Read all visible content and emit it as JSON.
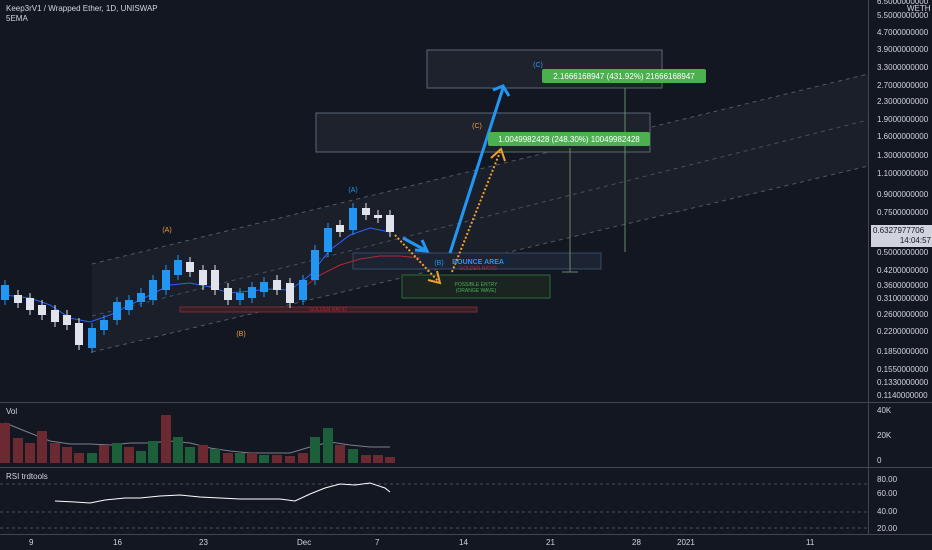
{
  "header": {
    "symbol_line": "Keep3rV1 / Wrapped Ether, 1D, UNISWAP",
    "indicator": "5EMA"
  },
  "price_axis": {
    "unit": "WETH",
    "ticks": [
      "6.5000000000",
      "5.5000000000",
      "4.7000000000",
      "3.9000000000",
      "3.3000000000",
      "2.7000000000",
      "2.3000000000",
      "1.9000000000",
      "1.6000000000",
      "1.3000000000",
      "1.1000000000",
      "0.9000000000",
      "0.7500000000",
      "0.6100000000",
      "0.5000000000",
      "0.4200000000",
      "0.3600000000",
      "0.3100000000",
      "0.2600000000",
      "0.2200000000",
      "0.1850000000",
      "0.1550000000",
      "0.1330000000",
      "0.1140000000"
    ],
    "last_price": "0.6327977706",
    "countdown": "14:04:57"
  },
  "annotations": {
    "target_c": "2.1666168947 (431.92%) 21666168947",
    "target_1": "1.0049982428 (248.30%) 10049982428",
    "wave_c_blue": "(C)",
    "wave_c_orange": "(C)",
    "wave_a_orange": "(A)",
    "wave_a_blue": "(A)",
    "wave_b_orange": "(B)",
    "wave_b_blue": "(B)",
    "bounce_area": "BOUNCE AREA",
    "golden_ratio_small": "GOLDEN RATIO",
    "golden_ratio": "GOLDEN RATIO",
    "possible_entry_1": "POSSIBLE ENTRY",
    "possible_entry_2": "(ORANGE WAVE)"
  },
  "volume_pane": {
    "label": "Vol",
    "ticks": [
      "40K",
      "20K",
      "0"
    ]
  },
  "rsi_pane": {
    "label": "RSI trdtools",
    "ticks": [
      "80.00",
      "60.00",
      "40.00",
      "20.00"
    ]
  },
  "time_axis": {
    "ticks": [
      "9",
      "16",
      "23",
      "Dec",
      "7",
      "14",
      "21",
      "28",
      "2021",
      "11"
    ]
  },
  "colors": {
    "up": "#2196f3",
    "down": "#e0e3eb",
    "vol_up": "#1d5e3b",
    "vol_down": "#6b2a32",
    "target_green": "#4caf50"
  }
}
